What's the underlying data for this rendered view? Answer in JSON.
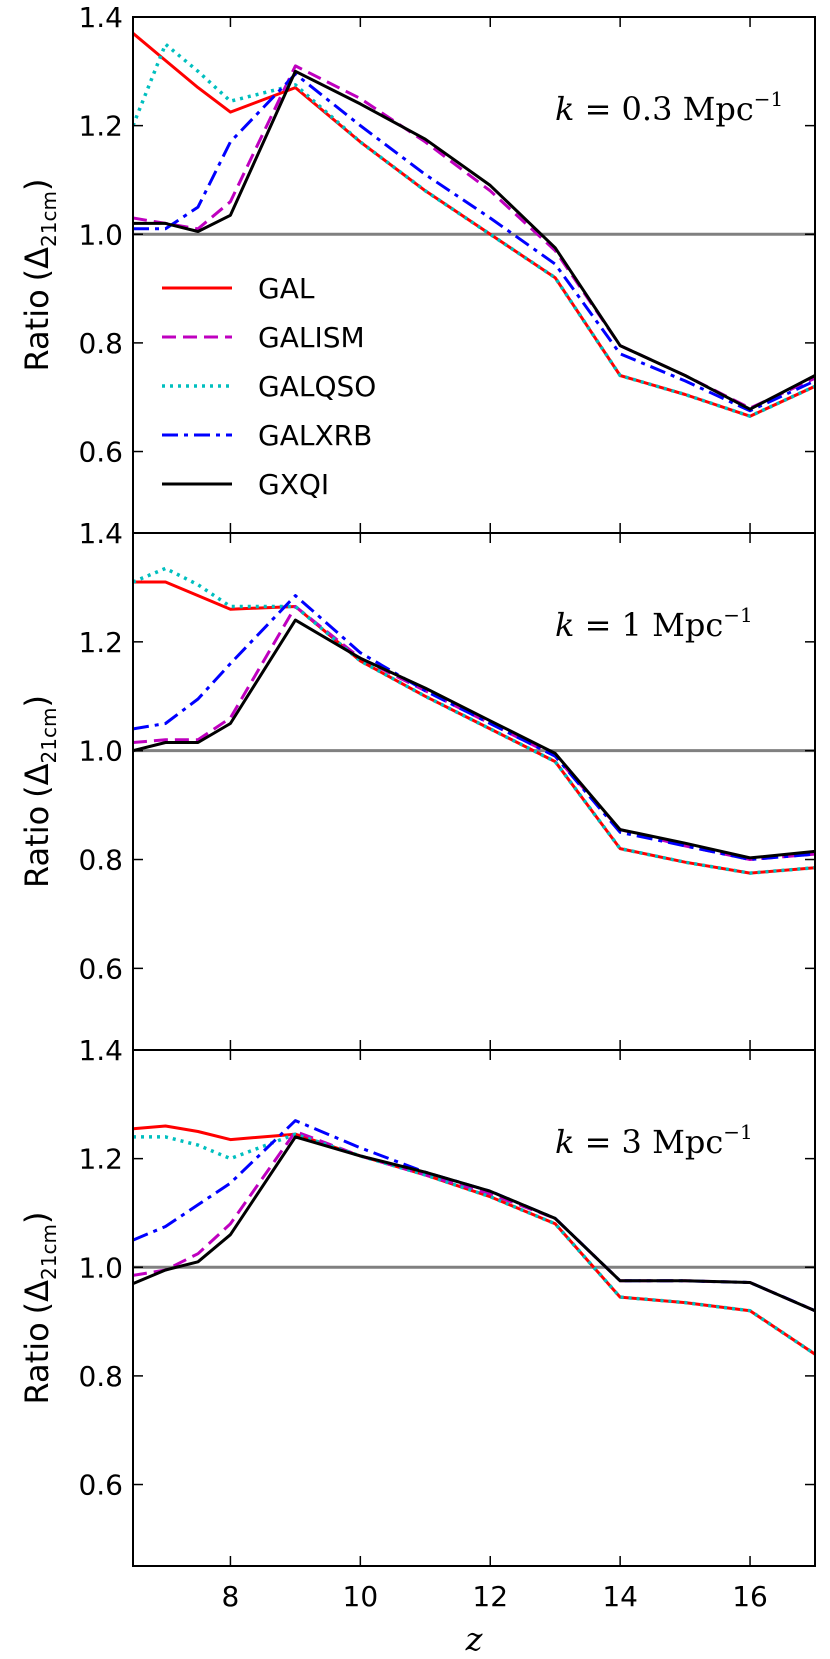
{
  "chart_data": {
    "type": "line",
    "xlabel": "z",
    "xlim": [
      6.5,
      17
    ],
    "xticks": [
      8,
      10,
      12,
      14,
      16
    ],
    "ylim": [
      0.45,
      1.4
    ],
    "yticks": [
      0.6,
      0.8,
      1.0,
      1.2,
      1.4
    ],
    "reference_line": 1.0,
    "legend": {
      "placement": "upper-left of top panel",
      "entries": [
        {
          "name": "GAL",
          "color": "#ff0000",
          "style": "solid"
        },
        {
          "name": "GALISM",
          "color": "#bf00bf",
          "style": "dashed"
        },
        {
          "name": "GALQSO",
          "color": "#00bfbf",
          "style": "dotted"
        },
        {
          "name": "GALXRB",
          "color": "#0000ff",
          "style": "dashdot"
        },
        {
          "name": "GXQI",
          "color": "#000000",
          "style": "solid"
        }
      ]
    },
    "panels": [
      {
        "ylabel_main": "Ratio",
        "ylabel_math": "(Δ",
        "ylabel_sub": "21cm",
        "ylabel_close": ")",
        "k_var": "k",
        "k_label": " = 0.3 Mpc",
        "k_exp": "−1",
        "x": [
          6.5,
          7,
          7.5,
          8,
          9,
          10,
          11,
          12,
          13,
          14,
          15,
          16,
          17
        ],
        "series": [
          {
            "name": "GAL",
            "values": [
              1.37,
              1.32,
              1.27,
              1.225,
              1.27,
              1.17,
              1.08,
              1.0,
              0.92,
              0.74,
              0.705,
              0.665,
              0.72
            ]
          },
          {
            "name": "GALISM",
            "values": [
              1.03,
              1.02,
              1.01,
              1.06,
              1.31,
              1.25,
              1.17,
              1.08,
              0.97,
              0.795,
              0.74,
              0.68,
              0.735
            ]
          },
          {
            "name": "GALQSO",
            "values": [
              1.2,
              1.35,
              1.3,
              1.245,
              1.275,
              1.17,
              1.08,
              1.0,
              0.92,
              0.74,
              0.705,
              0.665,
              0.72
            ]
          },
          {
            "name": "GALXRB",
            "values": [
              1.01,
              1.01,
              1.05,
              1.17,
              1.295,
              1.2,
              1.11,
              1.03,
              0.945,
              0.78,
              0.73,
              0.675,
              0.73
            ]
          },
          {
            "name": "GXQI",
            "values": [
              1.02,
              1.02,
              1.005,
              1.035,
              1.3,
              1.24,
              1.175,
              1.09,
              0.975,
              0.795,
              0.74,
              0.678,
              0.74
            ]
          }
        ]
      },
      {
        "ylabel_main": "Ratio",
        "ylabel_math": "(Δ",
        "ylabel_sub": "21cm",
        "ylabel_close": ")",
        "k_var": "k",
        "k_label": " = 1 Mpc",
        "k_exp": "−1",
        "x": [
          6.5,
          7,
          7.5,
          8,
          9,
          10,
          11,
          12,
          13,
          14,
          15,
          16,
          17
        ],
        "series": [
          {
            "name": "GAL",
            "values": [
              1.31,
              1.31,
              1.285,
              1.26,
              1.265,
              1.165,
              1.1,
              1.04,
              0.98,
              0.82,
              0.795,
              0.775,
              0.785
            ]
          },
          {
            "name": "GALISM",
            "values": [
              1.015,
              1.02,
              1.02,
              1.06,
              1.265,
              1.17,
              1.11,
              1.05,
              0.99,
              0.855,
              0.825,
              0.8,
              0.81
            ]
          },
          {
            "name": "GALQSO",
            "values": [
              1.31,
              1.335,
              1.305,
              1.265,
              1.265,
              1.165,
              1.1,
              1.04,
              0.98,
              0.82,
              0.795,
              0.775,
              0.785
            ]
          },
          {
            "name": "GALXRB",
            "values": [
              1.04,
              1.05,
              1.095,
              1.16,
              1.285,
              1.18,
              1.11,
              1.05,
              0.99,
              0.85,
              0.825,
              0.8,
              0.81
            ]
          },
          {
            "name": "GXQI",
            "values": [
              1.0,
              1.015,
              1.015,
              1.05,
              1.24,
              1.17,
              1.115,
              1.055,
              0.995,
              0.855,
              0.83,
              0.803,
              0.815
            ]
          }
        ]
      },
      {
        "ylabel_main": "Ratio",
        "ylabel_math": "(Δ",
        "ylabel_sub": "21cm",
        "ylabel_close": ")",
        "k_var": "k",
        "k_label": " = 3 Mpc",
        "k_exp": "−1",
        "x": [
          6.5,
          7,
          7.5,
          8,
          9,
          10,
          11,
          12,
          13,
          14,
          15,
          16,
          17
        ],
        "series": [
          {
            "name": "GAL",
            "values": [
              1.255,
              1.26,
              1.25,
              1.235,
              1.245,
              1.205,
              1.17,
              1.13,
              1.08,
              0.945,
              0.935,
              0.92,
              0.84
            ]
          },
          {
            "name": "GALISM",
            "values": [
              0.985,
              0.995,
              1.025,
              1.08,
              1.25,
              1.205,
              1.17,
              1.135,
              1.09,
              0.975,
              0.975,
              0.972,
              0.92
            ]
          },
          {
            "name": "GALQSO",
            "values": [
              1.24,
              1.24,
              1.225,
              1.2,
              1.245,
              1.205,
              1.17,
              1.13,
              1.08,
              0.945,
              0.935,
              0.92,
              0.84
            ]
          },
          {
            "name": "GALXRB",
            "values": [
              1.05,
              1.075,
              1.115,
              1.155,
              1.27,
              1.22,
              1.175,
              1.14,
              1.09,
              0.975,
              0.975,
              0.972,
              0.92
            ]
          },
          {
            "name": "GXQI",
            "values": [
              0.97,
              0.995,
              1.01,
              1.06,
              1.24,
              1.205,
              1.175,
              1.14,
              1.09,
              0.975,
              0.975,
              0.972,
              0.92
            ]
          }
        ]
      }
    ]
  }
}
